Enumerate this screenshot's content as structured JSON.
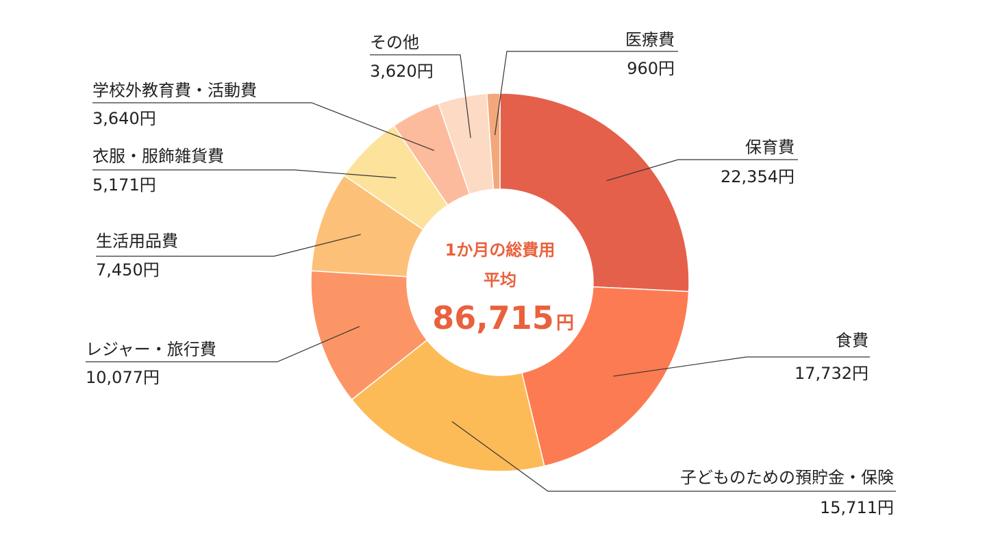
{
  "chart_data": {
    "type": "donut",
    "categories": [
      "保育費",
      "食費",
      "子どものための預貯金・保険",
      "レジャー・旅行費",
      "生活用品費",
      "衣服・服飾雑貨費",
      "学校外教育費・活動費",
      "その他",
      "医療費"
    ],
    "values": [
      22354,
      17732,
      15711,
      10077,
      7450,
      5171,
      3640,
      3620,
      960
    ],
    "value_labels": [
      "22,354円",
      "17,732円",
      "15,711円",
      "10,077円",
      "7,450円",
      "5,171円",
      "3,640円",
      "3,620円",
      "960円"
    ],
    "colors": [
      "#e5604a",
      "#fd7b52",
      "#fdbb57",
      "#fc9565",
      "#fdc078",
      "#fde29b",
      "#fdbb9d",
      "#fddac4",
      "#f3a77a"
    ],
    "center_title": "1か月の総費用",
    "center_subtitle": "平均",
    "total": {
      "value": 86715,
      "label": "86,715"
    },
    "total_unit": "円"
  }
}
